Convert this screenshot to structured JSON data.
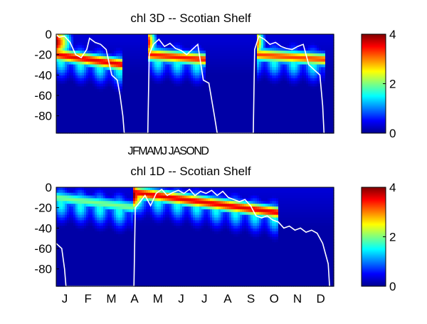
{
  "chart_data": [
    {
      "type": "heatmap",
      "title": "chl 3D   -- Scotian Shelf",
      "xlabel": "JFMAMJ JASOND",
      "x_ticks": [],
      "y_ticks": [
        "0",
        "-20",
        "-40",
        "-60",
        "-80"
      ],
      "ylim": [
        -97,
        0
      ],
      "colorbar": {
        "ticks": [
          "0",
          "2",
          "4"
        ],
        "range": [
          0,
          4
        ],
        "colormap": "jet"
      },
      "overlay_color": "#ffffff",
      "years": 3,
      "blooms": [
        {
          "start": 0.0,
          "end": 0.24,
          "surface_start": 0.0,
          "surface_end": 0.07,
          "peak_depth_start": -20,
          "peak_depth_end": -30,
          "peak_value": 4
        },
        {
          "start": 0.33,
          "end": 0.54,
          "surface_start": 0.33,
          "surface_end": 0.37,
          "peak_depth_start": -20,
          "peak_depth_end": -25,
          "peak_value": 3.8
        },
        {
          "start": 0.72,
          "end": 0.97,
          "surface_start": 0.72,
          "surface_end": 0.76,
          "peak_depth_start": -20,
          "peak_depth_end": -25,
          "peak_value": 3.6
        }
      ],
      "mixed_layer_depth": [
        {
          "t": 0.0,
          "d": 0
        },
        {
          "t": 0.01,
          "d": -3
        },
        {
          "t": 0.03,
          "d": -2
        },
        {
          "t": 0.05,
          "d": -8
        },
        {
          "t": 0.07,
          "d": -20
        },
        {
          "t": 0.09,
          "d": -23
        },
        {
          "t": 0.11,
          "d": -15
        },
        {
          "t": 0.12,
          "d": -4
        },
        {
          "t": 0.14,
          "d": -8
        },
        {
          "t": 0.16,
          "d": -10
        },
        {
          "t": 0.18,
          "d": -15
        },
        {
          "t": 0.2,
          "d": -40
        },
        {
          "t": 0.22,
          "d": -45
        },
        {
          "t": 0.23,
          "d": -60
        },
        {
          "t": 0.24,
          "d": -80
        },
        {
          "t": 0.245,
          "d": -97
        },
        {
          "t": 0.33,
          "d": -97
        },
        {
          "t": 0.335,
          "d": -20
        },
        {
          "t": 0.35,
          "d": -10
        },
        {
          "t": 0.37,
          "d": -5
        },
        {
          "t": 0.39,
          "d": -12
        },
        {
          "t": 0.41,
          "d": -9
        },
        {
          "t": 0.43,
          "d": -14
        },
        {
          "t": 0.45,
          "d": -16
        },
        {
          "t": 0.47,
          "d": -20
        },
        {
          "t": 0.49,
          "d": -15
        },
        {
          "t": 0.51,
          "d": -10
        },
        {
          "t": 0.53,
          "d": -45
        },
        {
          "t": 0.55,
          "d": -48
        },
        {
          "t": 0.57,
          "d": -80
        },
        {
          "t": 0.58,
          "d": -97
        },
        {
          "t": 0.71,
          "d": -97
        },
        {
          "t": 0.715,
          "d": -15
        },
        {
          "t": 0.73,
          "d": -2
        },
        {
          "t": 0.75,
          "d": -5
        },
        {
          "t": 0.77,
          "d": -10
        },
        {
          "t": 0.79,
          "d": -8
        },
        {
          "t": 0.81,
          "d": -12
        },
        {
          "t": 0.83,
          "d": -14
        },
        {
          "t": 0.85,
          "d": -15
        },
        {
          "t": 0.87,
          "d": -12
        },
        {
          "t": 0.89,
          "d": -10
        },
        {
          "t": 0.91,
          "d": -30
        },
        {
          "t": 0.93,
          "d": -35
        },
        {
          "t": 0.95,
          "d": -40
        },
        {
          "t": 0.96,
          "d": -70
        },
        {
          "t": 0.965,
          "d": -97
        }
      ]
    },
    {
      "type": "heatmap",
      "title": "chl 1D   -- Scotian Shelf",
      "x_ticks": [
        "J",
        "F",
        "M",
        "A",
        "M",
        "J",
        "J",
        "A",
        "S",
        "O",
        "N",
        "D"
      ],
      "y_ticks": [
        "0",
        "-20",
        "-40",
        "-60",
        "-80"
      ],
      "ylim": [
        -97,
        0
      ],
      "colorbar": {
        "ticks": [
          "0",
          "2",
          "4"
        ],
        "range": [
          0,
          4
        ],
        "colormap": "jet"
      },
      "overlay_color": "#ffffff",
      "years": 1,
      "blooms": [
        {
          "start": 0.0,
          "end": 0.28,
          "surface_start": 0.0,
          "surface_end": 0.0,
          "peak_depth_start": -10,
          "peak_depth_end": -20,
          "peak_value": 2.2
        },
        {
          "start": 0.28,
          "end": 0.8,
          "surface_start": 0.28,
          "surface_end": 0.33,
          "peak_depth_start": -5,
          "peak_depth_end": -25,
          "peak_value": 4
        }
      ],
      "mixed_layer_depth": [
        {
          "t": 0.0,
          "d": -55
        },
        {
          "t": 0.02,
          "d": -60
        },
        {
          "t": 0.03,
          "d": -80
        },
        {
          "t": 0.035,
          "d": -97
        },
        {
          "t": 0.28,
          "d": -97
        },
        {
          "t": 0.285,
          "d": -20
        },
        {
          "t": 0.3,
          "d": -15
        },
        {
          "t": 0.32,
          "d": -8
        },
        {
          "t": 0.34,
          "d": -18
        },
        {
          "t": 0.36,
          "d": -6
        },
        {
          "t": 0.38,
          "d": -2
        },
        {
          "t": 0.4,
          "d": -8
        },
        {
          "t": 0.42,
          "d": -5
        },
        {
          "t": 0.44,
          "d": -3
        },
        {
          "t": 0.46,
          "d": -6
        },
        {
          "t": 0.48,
          "d": -2
        },
        {
          "t": 0.5,
          "d": -8
        },
        {
          "t": 0.52,
          "d": -4
        },
        {
          "t": 0.54,
          "d": -6
        },
        {
          "t": 0.56,
          "d": -3
        },
        {
          "t": 0.58,
          "d": -8
        },
        {
          "t": 0.6,
          "d": -4
        },
        {
          "t": 0.62,
          "d": -10
        },
        {
          "t": 0.64,
          "d": -12
        },
        {
          "t": 0.66,
          "d": -14
        },
        {
          "t": 0.68,
          "d": -12
        },
        {
          "t": 0.7,
          "d": -18
        },
        {
          "t": 0.72,
          "d": -28
        },
        {
          "t": 0.74,
          "d": -30
        },
        {
          "t": 0.76,
          "d": -28
        },
        {
          "t": 0.78,
          "d": -32
        },
        {
          "t": 0.8,
          "d": -34
        },
        {
          "t": 0.82,
          "d": -40
        },
        {
          "t": 0.84,
          "d": -38
        },
        {
          "t": 0.86,
          "d": -42
        },
        {
          "t": 0.88,
          "d": -40
        },
        {
          "t": 0.9,
          "d": -44
        },
        {
          "t": 0.92,
          "d": -42
        },
        {
          "t": 0.94,
          "d": -45
        },
        {
          "t": 0.96,
          "d": -55
        },
        {
          "t": 0.98,
          "d": -75
        },
        {
          "t": 0.985,
          "d": -97
        }
      ]
    }
  ]
}
